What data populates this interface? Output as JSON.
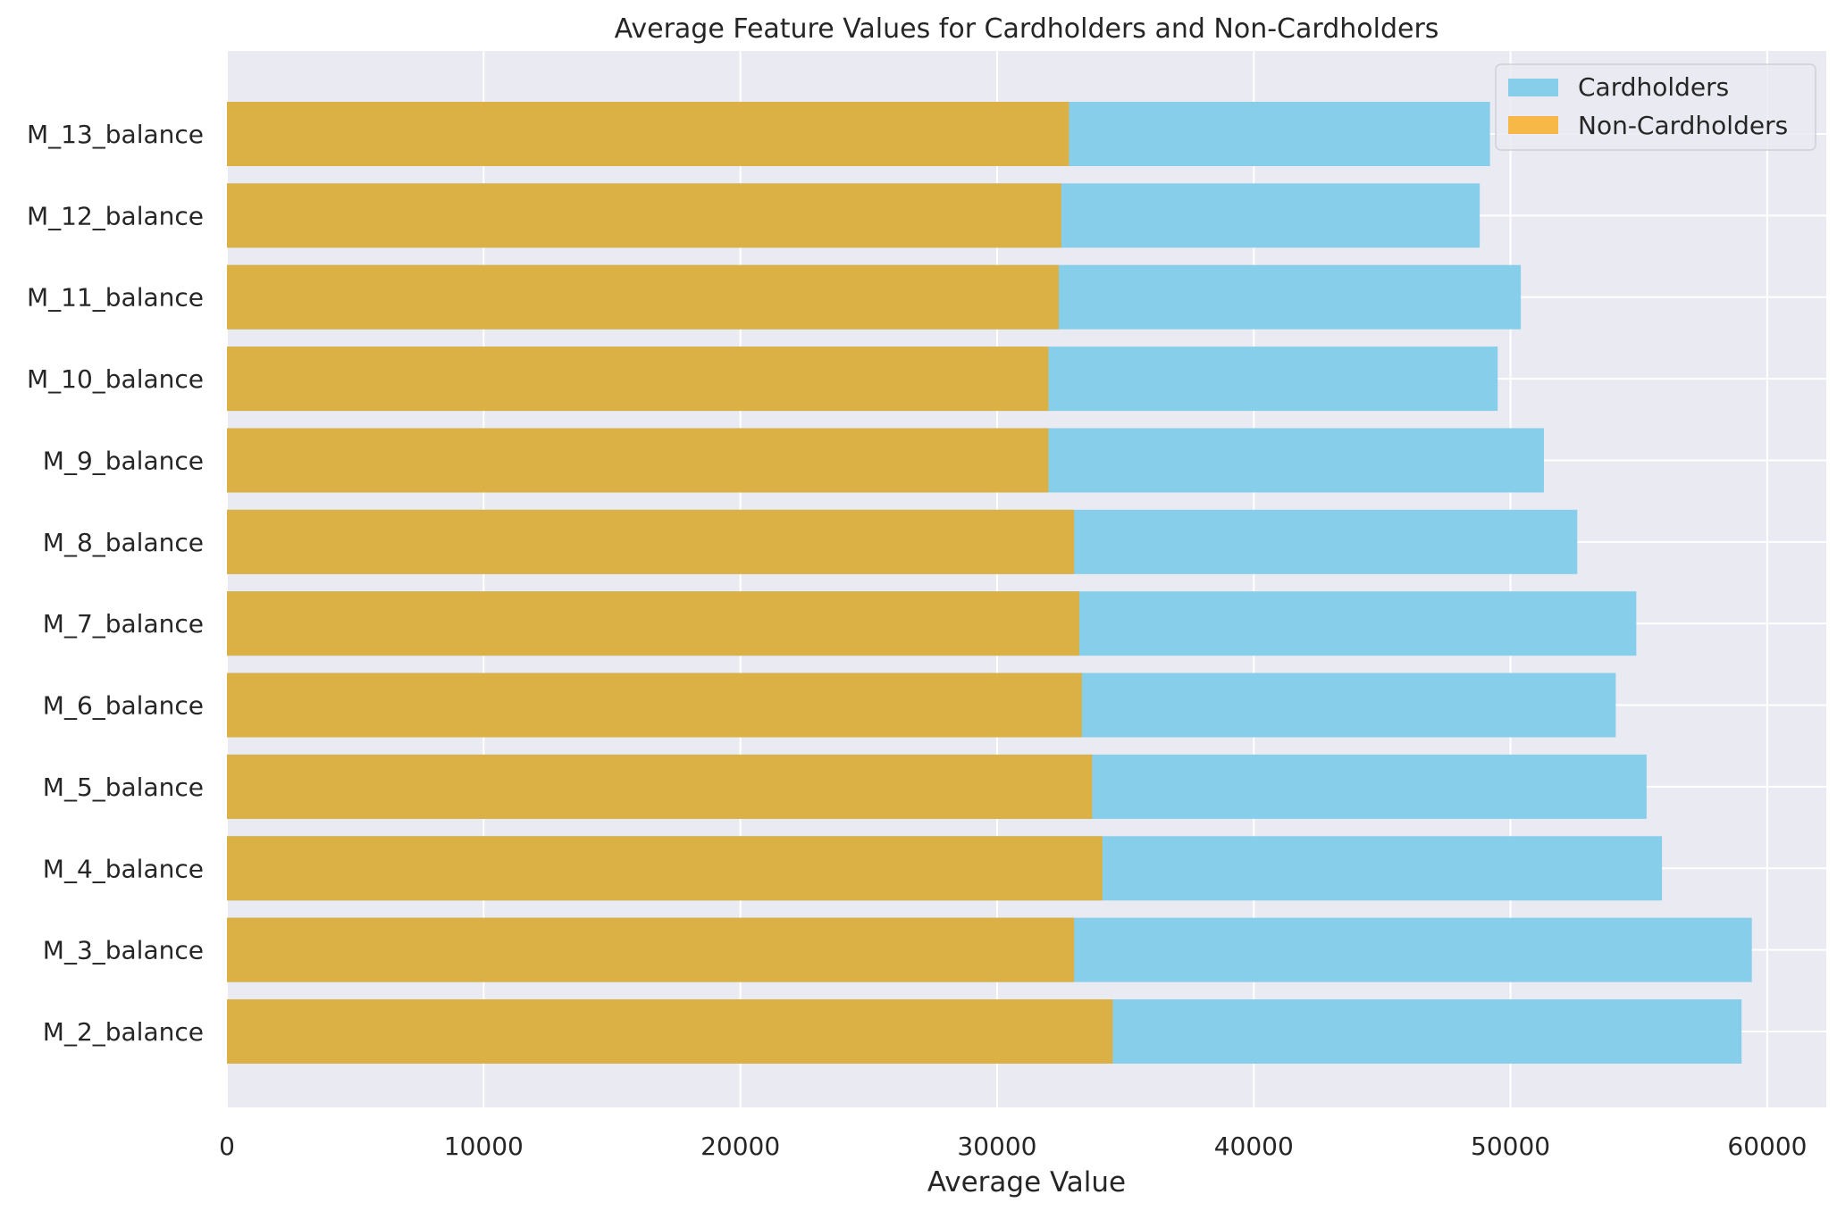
{
  "chart_data": {
    "type": "bar",
    "orientation": "horizontal",
    "title": "Average Feature Values for Cardholders and Non-Cardholders",
    "xlabel": "Average Value",
    "ylabel": "",
    "xlim": [
      0,
      62300
    ],
    "xticks": [
      0,
      10000,
      20000,
      30000,
      40000,
      50000,
      60000
    ],
    "grid": true,
    "legend_position": "top-right",
    "categories": [
      "M_2_balance",
      "M_3_balance",
      "M_4_balance",
      "M_5_balance",
      "M_6_balance",
      "M_7_balance",
      "M_8_balance",
      "M_9_balance",
      "M_10_balance",
      "M_11_balance",
      "M_12_balance",
      "M_13_balance"
    ],
    "series": [
      {
        "name": "Cardholders",
        "color": "#87ceeb",
        "values": [
          59000,
          59400,
          55900,
          55300,
          54100,
          54900,
          52600,
          51300,
          49500,
          50400,
          48800,
          49200
        ]
      },
      {
        "name": "Non-Cardholders",
        "color": "#dbb145",
        "legend_color": "#f8b848",
        "values": [
          34500,
          33000,
          34100,
          33700,
          33300,
          33200,
          33000,
          32000,
          32000,
          32400,
          32500,
          32800
        ]
      }
    ]
  }
}
